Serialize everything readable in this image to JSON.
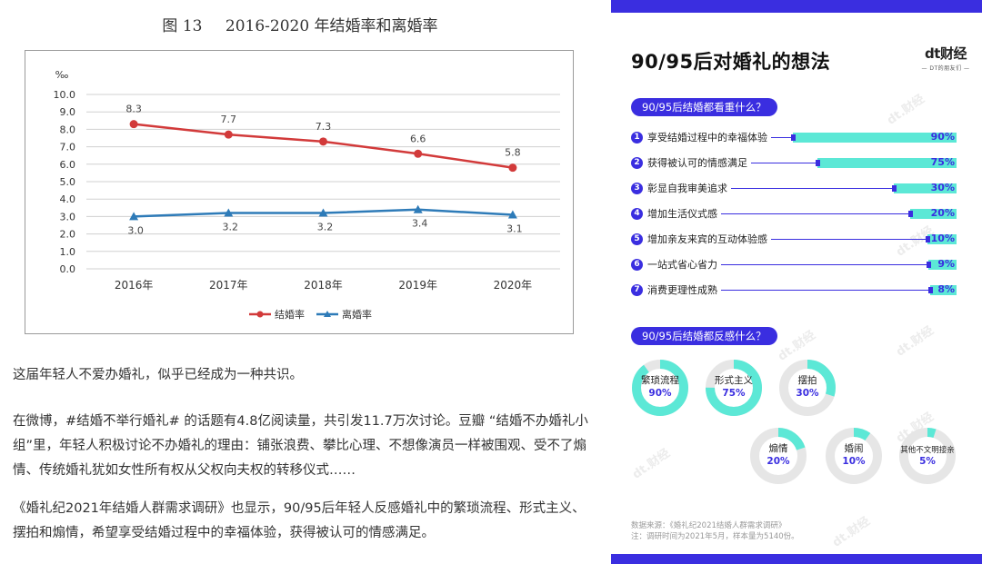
{
  "article": {
    "figure_title_num": "图 13",
    "figure_title_text": "2016-2020 年结婚率和离婚率",
    "paragraphs": [
      "这届年轻人不爱办婚礼，似乎已经成为一种共识。",
      "在微博，#结婚不举行婚礼# 的话题有4.8亿阅读量，共引发11.7万次讨论。豆瓣 “结婚不办婚礼小组”里，年轻人积极讨论不办婚礼的理由：铺张浪费、攀比心理、不想像演员一样被围观、受不了煽情、传统婚礼犹如女性所有权从父权向夫权的转移仪式……",
      "《婚礼纪2021年结婚人群需求调研》也显示，90/95后年轻人反感婚礼中的繁琐流程、形式主义、摆拍和煽情，希望享受结婚过程中的幸福体验，获得被认可的情感满足。"
    ]
  },
  "chart_data": [
    {
      "type": "line",
      "title": "2016-2020 年结婚率和离婚率",
      "ylabel": "‰",
      "ylim": [
        0,
        10
      ],
      "yticks": [
        "0.0",
        "1.0",
        "2.0",
        "3.0",
        "4.0",
        "5.0",
        "6.0",
        "7.0",
        "8.0",
        "9.0",
        "10.0"
      ],
      "categories": [
        "2016年",
        "2017年",
        "2018年",
        "2019年",
        "2020年"
      ],
      "grid": true,
      "legend_position": "bottom",
      "series": [
        {
          "name": "结婚率",
          "color": "#d23a3a",
          "values": [
            8.3,
            7.7,
            7.3,
            6.6,
            5.8
          ],
          "labels": [
            "8.3",
            "7.7",
            "7.3",
            "6.6",
            "5.8"
          ]
        },
        {
          "name": "离婚率",
          "color": "#2e7bb8",
          "values": [
            3.0,
            3.2,
            3.2,
            3.4,
            3.1
          ],
          "labels": [
            "3.0",
            "3.2",
            "3.2",
            "3.4",
            "3.1"
          ]
        }
      ]
    },
    {
      "type": "bar",
      "title": "90/95后结婚都看重什么？",
      "categories": [
        "享受结婚过程中的幸福体验",
        "获得被认可的情感满足",
        "彰显自我审美追求",
        "增加生活仪式感",
        "增加亲友来宾的互动体验感",
        "一站式省心省力",
        "消费更理性成熟"
      ],
      "values": [
        90,
        75,
        30,
        20,
        10,
        9,
        8
      ],
      "labels": [
        "90%",
        "75%",
        "30%",
        "20%",
        "10%",
        "9%",
        "8%"
      ],
      "unit": "%"
    },
    {
      "type": "pie",
      "title": "90/95后结婚都反感什么？",
      "categories": [
        "繁琐流程",
        "形式主义",
        "摆拍",
        "煽情",
        "婚闹",
        "其他不文明接亲"
      ],
      "values": [
        90,
        75,
        30,
        20,
        10,
        5
      ],
      "labels": [
        "90%",
        "75%",
        "30%",
        "20%",
        "10%",
        "5%"
      ],
      "unit": "%"
    }
  ],
  "infographic": {
    "title": "90/95后对婚礼的想法",
    "logo_main": "dt财经",
    "logo_sub": "— DT的朋友们 —",
    "question1": "90/95后结婚都看重什么？",
    "question2": "90/95后结婚都反感什么？",
    "source_line1": "数据来源：《婚礼纪2021结婚人群需求调研》",
    "source_line2": "注：调研时间为2021年5月，样本量为5140份。",
    "accent_color": "#3a2ee0",
    "fill_color": "#5ce8d6",
    "ring_bg_color": "#e6e6e6"
  }
}
